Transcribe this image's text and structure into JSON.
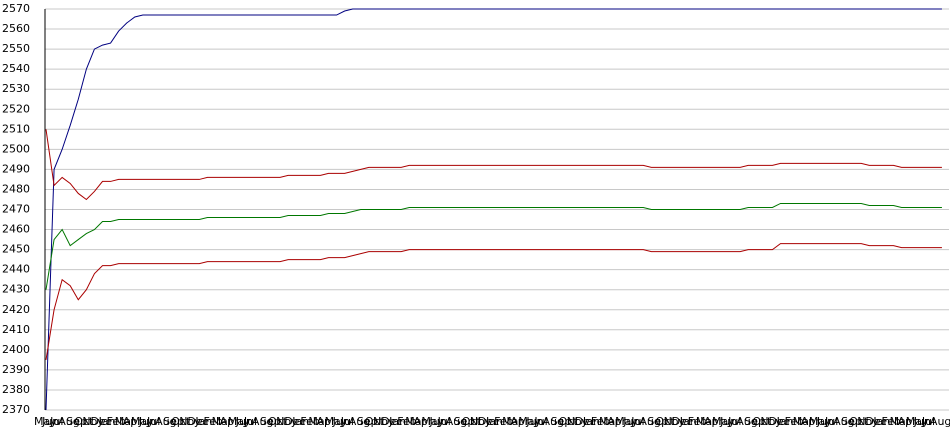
{
  "chart_data": {
    "type": "line",
    "categories": [
      "May",
      "Jun",
      "Jul",
      "Aug",
      "Sep",
      "Oct",
      "Nov",
      "Dec",
      "Jan",
      "Feb",
      "Mar",
      "Apr",
      "May",
      "Jun",
      "Jul",
      "Aug",
      "Sep",
      "Oct",
      "Nov",
      "Dec",
      "Jan",
      "Feb",
      "Mar",
      "Apr",
      "May",
      "Jun",
      "Jul",
      "Aug",
      "Sep",
      "Oct",
      "Nov",
      "Dec",
      "Jan",
      "Feb",
      "Mar",
      "Apr",
      "May",
      "Jun",
      "Jul",
      "Aug",
      "Sep",
      "Oct",
      "Nov",
      "Dec",
      "Jan",
      "Feb",
      "Mar",
      "Apr",
      "May",
      "Jun",
      "Jul",
      "Aug",
      "Sep",
      "Oct",
      "Nov",
      "Dec",
      "Jan",
      "Feb",
      "Mar",
      "Apr",
      "May",
      "Jun",
      "Jul",
      "Aug",
      "Sep",
      "Oct",
      "Nov",
      "Dec",
      "Jan",
      "Feb",
      "Mar",
      "Apr",
      "May",
      "Jun",
      "Jul",
      "Aug",
      "Sep",
      "Oct",
      "Nov",
      "Dec",
      "Jan",
      "Feb",
      "Mar",
      "Apr",
      "May",
      "Jun",
      "Jul",
      "Aug",
      "Sep",
      "Oct",
      "Nov",
      "Dec",
      "Jan",
      "Feb",
      "Mar",
      "Apr",
      "May",
      "Jun",
      "Jul",
      "Aug",
      "Sep",
      "Oct",
      "Nov",
      "Dec",
      "Jan",
      "Feb",
      "Mar",
      "Apr",
      "May",
      "Jun",
      "Jul",
      "Aug"
    ],
    "series": [
      {
        "color": "#000080",
        "values": [
          2370,
          2490,
          2500,
          2512,
          2525,
          2540,
          2550,
          2552,
          2553,
          2559,
          2563,
          2566,
          2567,
          2567,
          2567,
          2567,
          2567,
          2567,
          2567,
          2567,
          2567,
          2567,
          2567,
          2567,
          2567,
          2567,
          2567,
          2567,
          2567,
          2567,
          2567,
          2567,
          2567,
          2567,
          2567,
          2567,
          2567,
          2569,
          2570,
          2570,
          2570,
          2570,
          2570,
          2570,
          2570,
          2570,
          2570,
          2570,
          2570,
          2570,
          2570,
          2570,
          2570,
          2570,
          2570,
          2570,
          2570,
          2570,
          2570,
          2570,
          2570,
          2570,
          2570,
          2570,
          2570,
          2570,
          2570,
          2570,
          2570,
          2570,
          2570,
          2570,
          2570,
          2570,
          2570,
          2570,
          2570,
          2570,
          2570,
          2570,
          2570,
          2570,
          2570,
          2570,
          2570,
          2570,
          2570,
          2570,
          2570,
          2570,
          2570,
          2570,
          2570,
          2570,
          2570,
          2570,
          2570,
          2570,
          2570,
          2570,
          2570,
          2570,
          2570,
          2570,
          2570,
          2570,
          2570,
          2570,
          2570,
          2570,
          2570,
          2570
        ]
      },
      {
        "color": "#aa0000",
        "values": [
          2510,
          2482,
          2486,
          2483,
          2478,
          2475,
          2479,
          2484,
          2484,
          2485,
          2485,
          2485,
          2485,
          2485,
          2485,
          2485,
          2485,
          2485,
          2485,
          2485,
          2486,
          2486,
          2486,
          2486,
          2486,
          2486,
          2486,
          2486,
          2486,
          2486,
          2487,
          2487,
          2487,
          2487,
          2487,
          2488,
          2488,
          2488,
          2489,
          2490,
          2491,
          2491,
          2491,
          2491,
          2491,
          2492,
          2492,
          2492,
          2492,
          2492,
          2492,
          2492,
          2492,
          2492,
          2492,
          2492,
          2492,
          2492,
          2492,
          2492,
          2492,
          2492,
          2492,
          2492,
          2492,
          2492,
          2492,
          2492,
          2492,
          2492,
          2492,
          2492,
          2492,
          2492,
          2492,
          2491,
          2491,
          2491,
          2491,
          2491,
          2491,
          2491,
          2491,
          2491,
          2491,
          2491,
          2491,
          2492,
          2492,
          2492,
          2492,
          2493,
          2493,
          2493,
          2493,
          2493,
          2493,
          2493,
          2493,
          2493,
          2493,
          2493,
          2492,
          2492,
          2492,
          2492,
          2491,
          2491,
          2491,
          2491,
          2491,
          2491
        ]
      },
      {
        "color": "#007700",
        "values": [
          2430,
          2455,
          2460,
          2452,
          2455,
          2458,
          2460,
          2464,
          2464,
          2465,
          2465,
          2465,
          2465,
          2465,
          2465,
          2465,
          2465,
          2465,
          2465,
          2465,
          2466,
          2466,
          2466,
          2466,
          2466,
          2466,
          2466,
          2466,
          2466,
          2466,
          2467,
          2467,
          2467,
          2467,
          2467,
          2468,
          2468,
          2468,
          2469,
          2470,
          2470,
          2470,
          2470,
          2470,
          2470,
          2471,
          2471,
          2471,
          2471,
          2471,
          2471,
          2471,
          2471,
          2471,
          2471,
          2471,
          2471,
          2471,
          2471,
          2471,
          2471,
          2471,
          2471,
          2471,
          2471,
          2471,
          2471,
          2471,
          2471,
          2471,
          2471,
          2471,
          2471,
          2471,
          2471,
          2470,
          2470,
          2470,
          2470,
          2470,
          2470,
          2470,
          2470,
          2470,
          2470,
          2470,
          2470,
          2471,
          2471,
          2471,
          2471,
          2473,
          2473,
          2473,
          2473,
          2473,
          2473,
          2473,
          2473,
          2473,
          2473,
          2473,
          2472,
          2472,
          2472,
          2472,
          2471,
          2471,
          2471,
          2471,
          2471,
          2471
        ]
      },
      {
        "color": "#aa0000",
        "values": [
          2395,
          2420,
          2435,
          2432,
          2425,
          2430,
          2438,
          2442,
          2442,
          2443,
          2443,
          2443,
          2443,
          2443,
          2443,
          2443,
          2443,
          2443,
          2443,
          2443,
          2444,
          2444,
          2444,
          2444,
          2444,
          2444,
          2444,
          2444,
          2444,
          2444,
          2445,
          2445,
          2445,
          2445,
          2445,
          2446,
          2446,
          2446,
          2447,
          2448,
          2449,
          2449,
          2449,
          2449,
          2449,
          2450,
          2450,
          2450,
          2450,
          2450,
          2450,
          2450,
          2450,
          2450,
          2450,
          2450,
          2450,
          2450,
          2450,
          2450,
          2450,
          2450,
          2450,
          2450,
          2450,
          2450,
          2450,
          2450,
          2450,
          2450,
          2450,
          2450,
          2450,
          2450,
          2450,
          2449,
          2449,
          2449,
          2449,
          2449,
          2449,
          2449,
          2449,
          2449,
          2449,
          2449,
          2449,
          2450,
          2450,
          2450,
          2450,
          2453,
          2453,
          2453,
          2453,
          2453,
          2453,
          2453,
          2453,
          2453,
          2453,
          2453,
          2452,
          2452,
          2452,
          2452,
          2451,
          2451,
          2451,
          2451,
          2451,
          2451
        ]
      }
    ],
    "ylim": [
      2370,
      2570
    ],
    "yticks": [
      2370,
      2380,
      2390,
      2400,
      2410,
      2420,
      2430,
      2440,
      2450,
      2460,
      2470,
      2480,
      2490,
      2500,
      2510,
      2520,
      2530,
      2540,
      2550,
      2560,
      2570
    ],
    "grid": true
  }
}
